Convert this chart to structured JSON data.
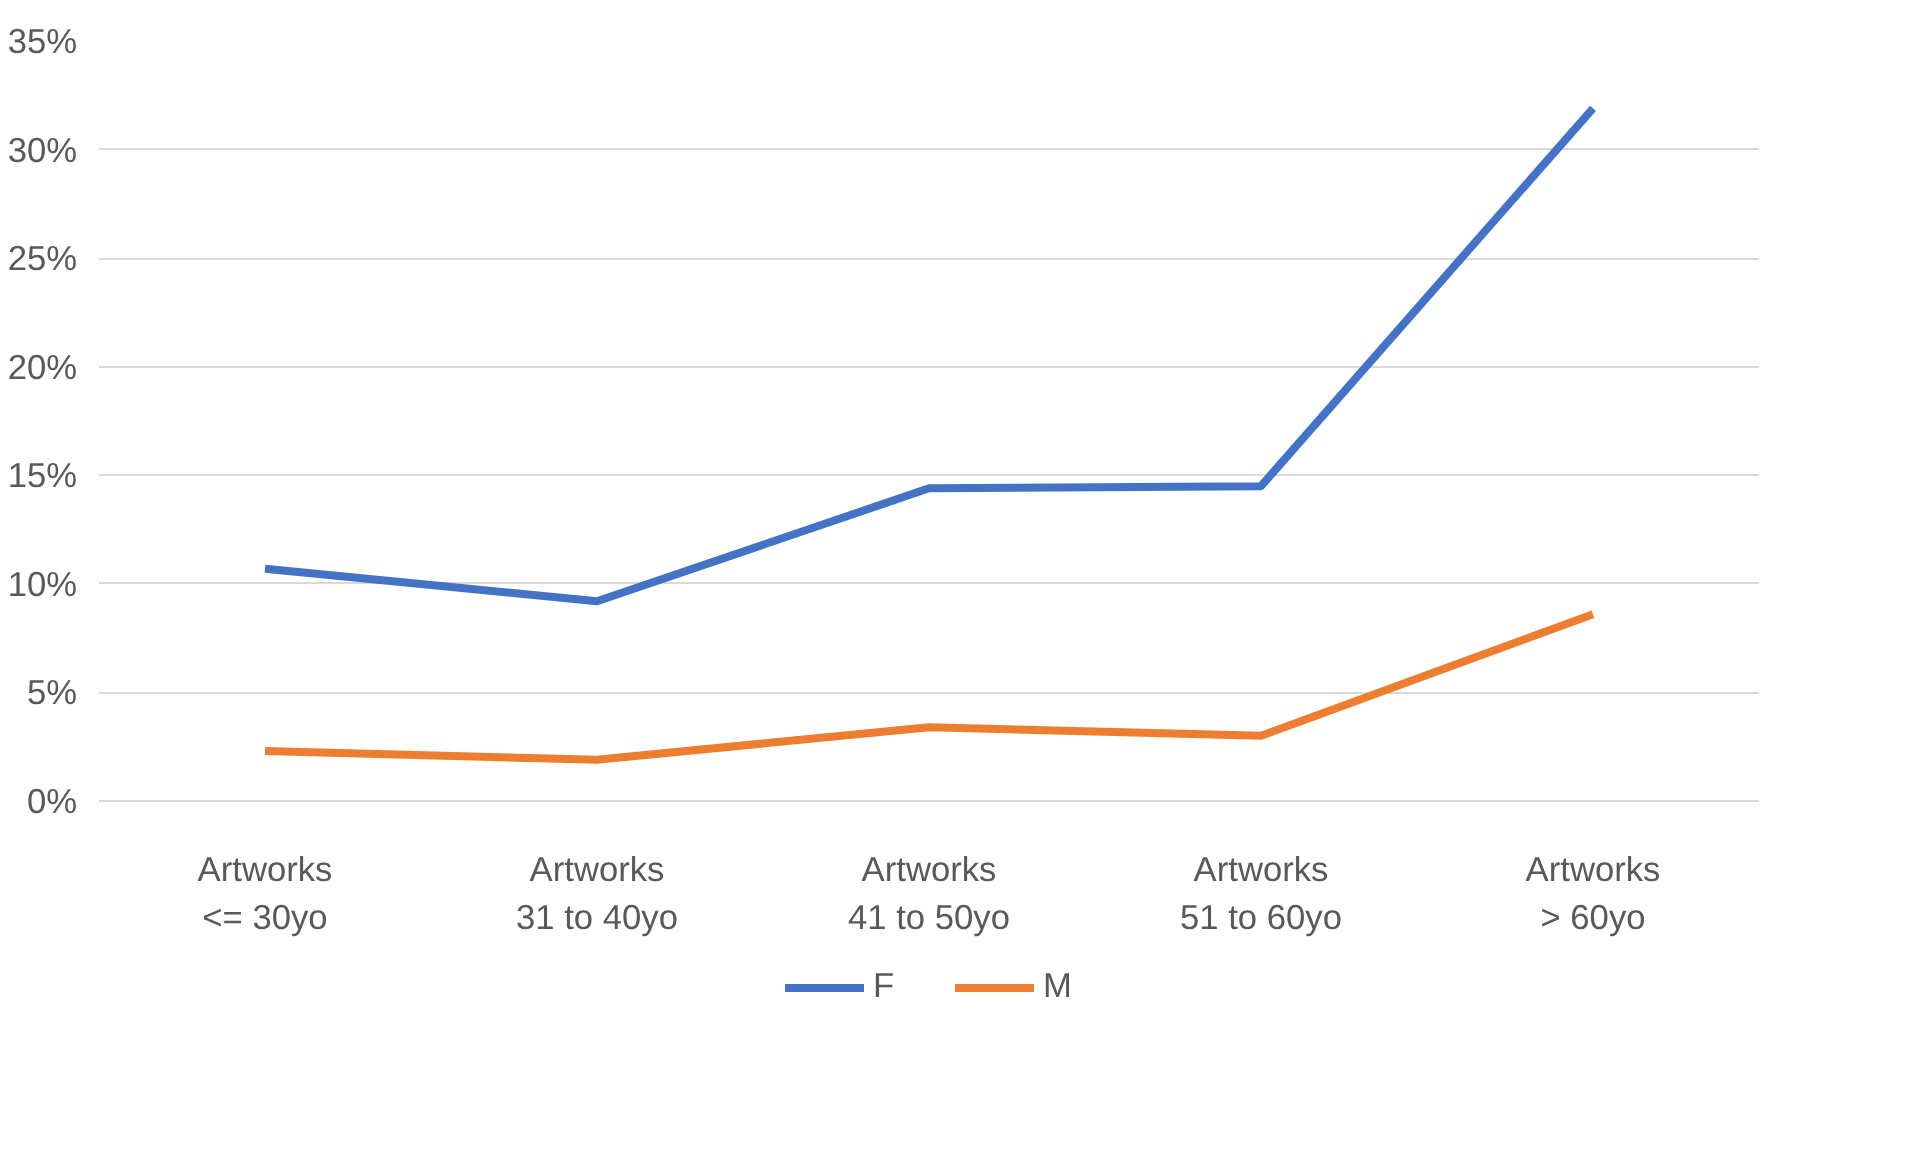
{
  "chart_data": {
    "type": "line",
    "categories": [
      "Artworks\n<= 30yo",
      "Artworks\n31 to 40yo",
      "Artworks\n41 to 50yo",
      "Artworks\n51 to 60yo",
      "Artworks\n> 60yo"
    ],
    "series": [
      {
        "name": "F",
        "color": "#4472c4",
        "values": [
          10.7,
          9.2,
          14.4,
          14.5,
          31.9
        ]
      },
      {
        "name": "M",
        "color": "#ed7d31",
        "values": [
          2.3,
          1.9,
          3.4,
          3.0,
          8.6
        ]
      }
    ],
    "ylim": [
      0,
      35
    ],
    "yticks": [
      {
        "value": 0,
        "label": "0%"
      },
      {
        "value": 5,
        "label": "5%"
      },
      {
        "value": 10,
        "label": "10%"
      },
      {
        "value": 15,
        "label": "15%"
      },
      {
        "value": 20,
        "label": "20%"
      },
      {
        "value": 25,
        "label": "25%"
      },
      {
        "value": 30,
        "label": "30%"
      },
      {
        "value": 35,
        "label": "35%"
      }
    ],
    "grid": "y",
    "legend": "bottom",
    "marker": "none",
    "line_style": "solid"
  }
}
